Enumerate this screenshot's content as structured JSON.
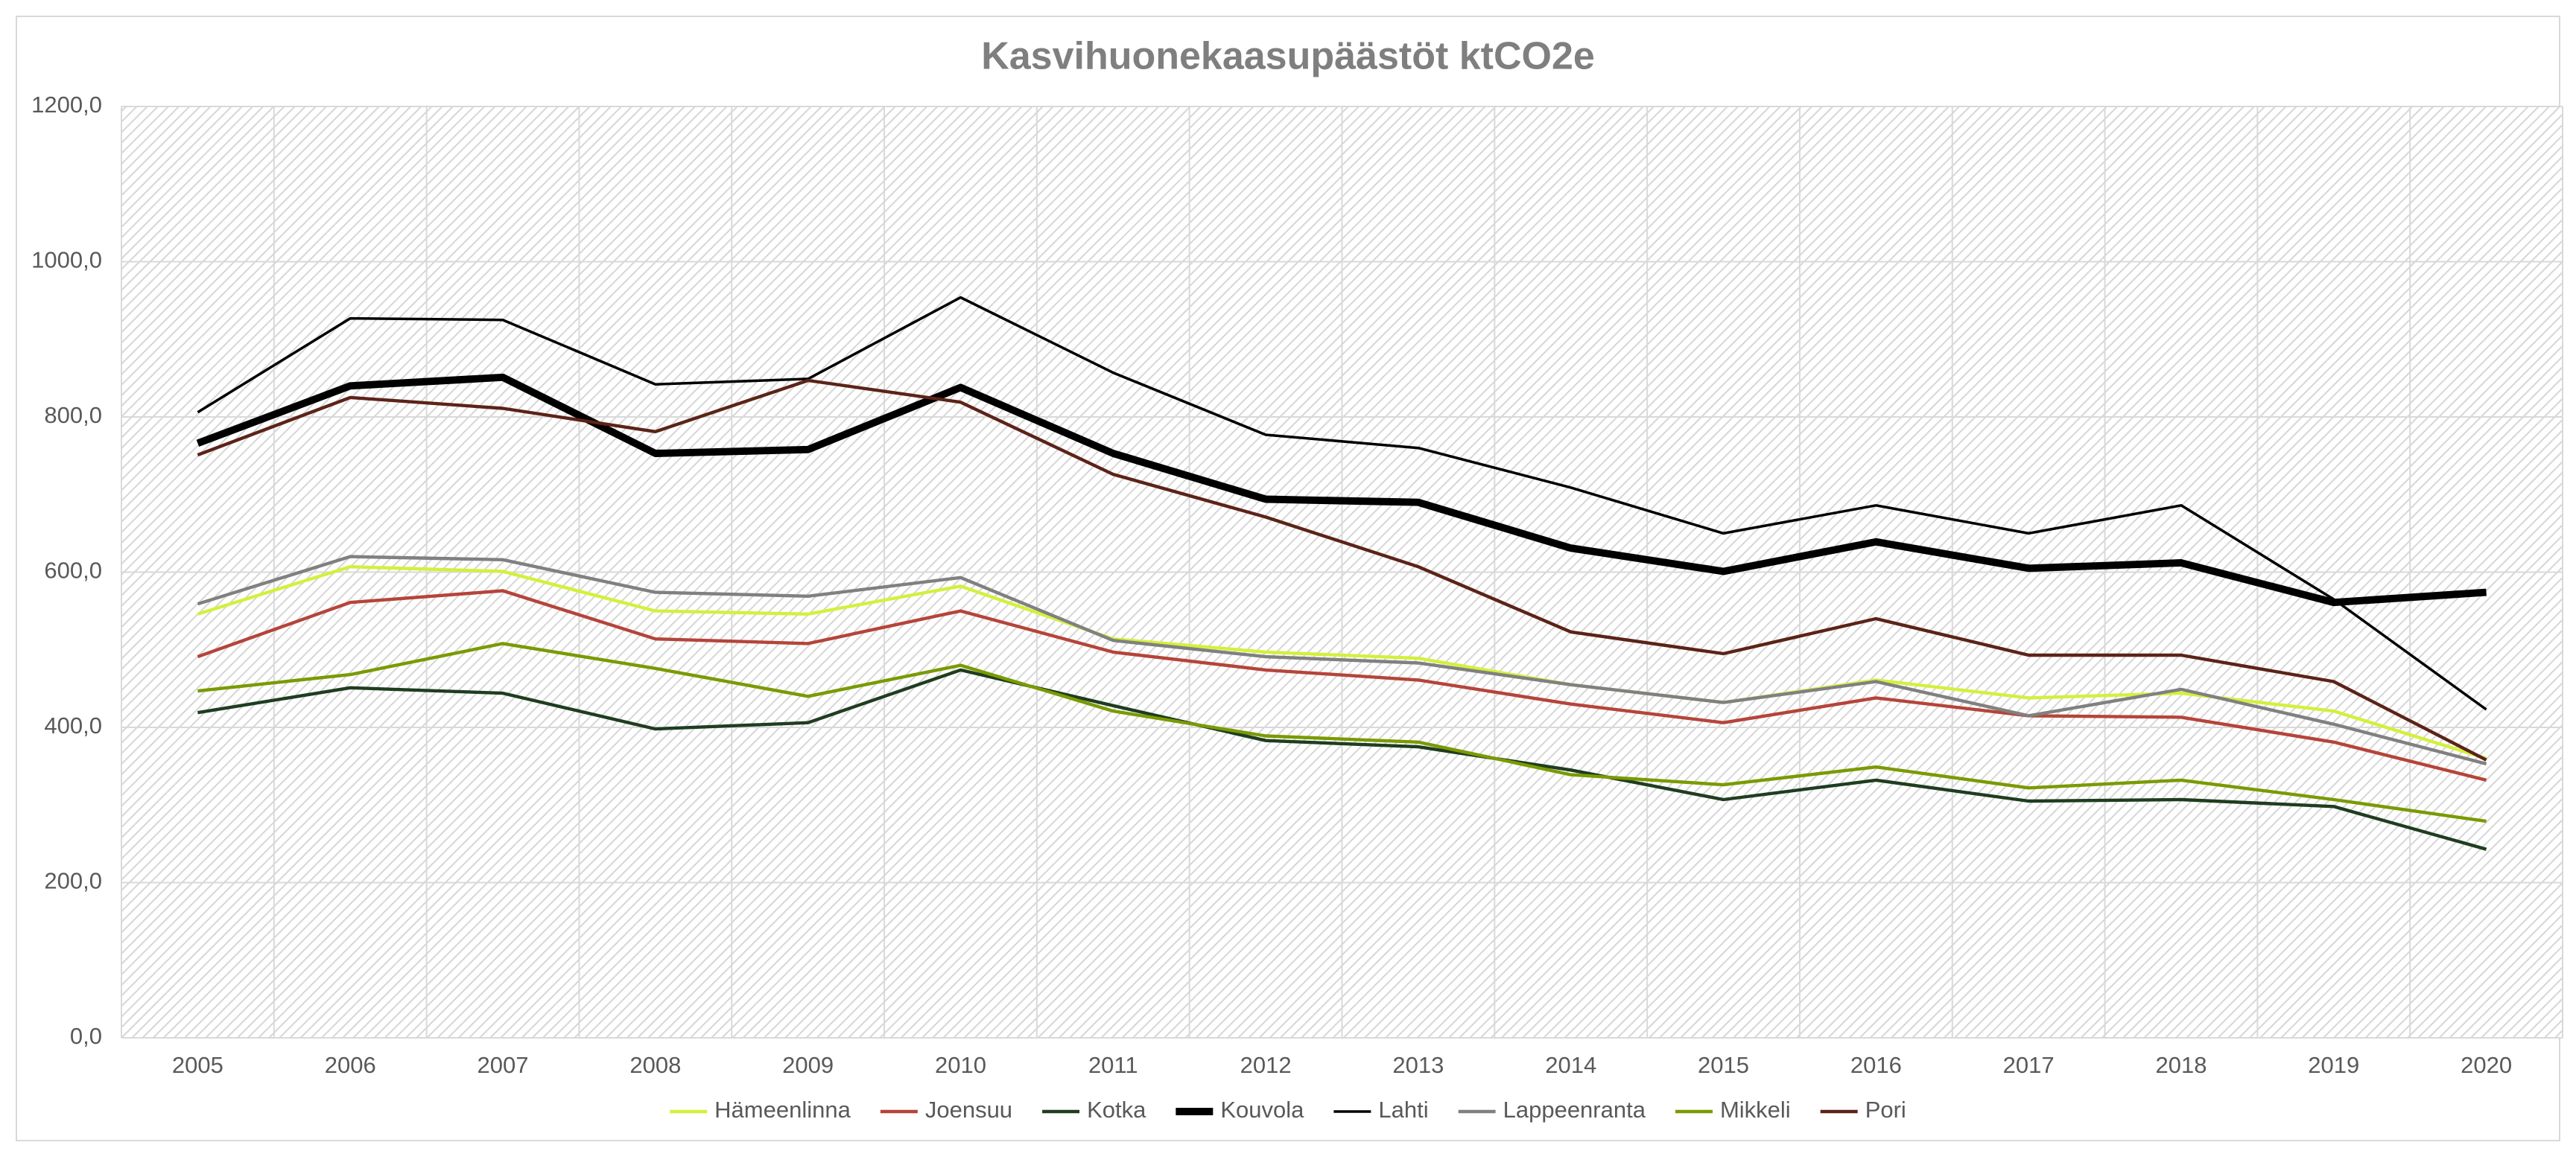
{
  "chart_data": {
    "type": "line",
    "title": "Kasvihuonekaasupäästöt ktCO2e",
    "categories": [
      "2005",
      "2006",
      "2007",
      "2008",
      "2009",
      "2010",
      "2011",
      "2012",
      "2013",
      "2014",
      "2015",
      "2016",
      "2017",
      "2018",
      "2019",
      "2020"
    ],
    "ylim": [
      0,
      1200
    ],
    "yticks": [
      {
        "value": 0,
        "label": "0,0"
      },
      {
        "value": 200,
        "label": "200,0"
      },
      {
        "value": 400,
        "label": "400,0"
      },
      {
        "value": 600,
        "label": "600,0"
      },
      {
        "value": 800,
        "label": "800,0"
      },
      {
        "value": 1000,
        "label": "1000,0"
      },
      {
        "value": 1200,
        "label": "1200,0"
      }
    ],
    "grid": true,
    "legend": "bottom",
    "series": [
      {
        "name": "Hämeenlinna",
        "color": "#d4f03c",
        "line_width": 2,
        "values": [
          546,
          607,
          601,
          550,
          546,
          582,
          514,
          497,
          489,
          455,
          432,
          461,
          438,
          444,
          421,
          360
        ]
      },
      {
        "name": "Joensuu",
        "color": "#b5443a",
        "line_width": 2,
        "values": [
          491,
          561,
          576,
          514,
          508,
          550,
          497,
          474,
          461,
          430,
          406,
          438,
          415,
          413,
          381,
          332
        ]
      },
      {
        "name": "Kotka",
        "color": "#1f3d1f",
        "line_width": 2,
        "values": [
          419,
          451,
          444,
          398,
          406,
          474,
          428,
          383,
          375,
          345,
          307,
          332,
          305,
          307,
          298,
          243
        ]
      },
      {
        "name": "Kouvola",
        "color": "#000000",
        "line_width": 4.5,
        "values": [
          766,
          840,
          851,
          753,
          758,
          838,
          753,
          694,
          690,
          631,
          601,
          639,
          605,
          612,
          561,
          574
        ]
      },
      {
        "name": "Lahti",
        "color": "#000000",
        "line_width": 1.6,
        "values": [
          806,
          927,
          925,
          842,
          849,
          954,
          857,
          777,
          760,
          709,
          650,
          686,
          650,
          686,
          565,
          423
        ]
      },
      {
        "name": "Lappeenranta",
        "color": "#808080",
        "line_width": 2,
        "values": [
          559,
          620,
          616,
          574,
          569,
          593,
          512,
          491,
          483,
          455,
          432,
          459,
          415,
          449,
          404,
          353
        ]
      },
      {
        "name": "Mikkeli",
        "color": "#7a9a01",
        "line_width": 2,
        "values": [
          447,
          468,
          508,
          476,
          440,
          480,
          421,
          389,
          381,
          339,
          326,
          349,
          322,
          332,
          307,
          279
        ]
      },
      {
        "name": "Pori",
        "color": "#5c2318",
        "line_width": 2,
        "values": [
          751,
          825,
          811,
          781,
          847,
          819,
          726,
          671,
          607,
          523,
          495,
          540,
          493,
          493,
          459,
          358
        ]
      }
    ]
  }
}
